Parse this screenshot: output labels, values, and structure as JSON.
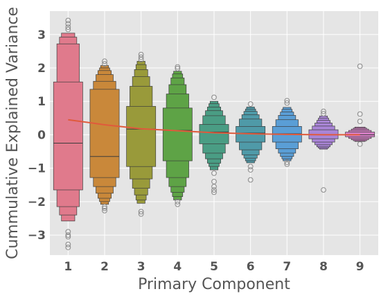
{
  "chart_data": {
    "type": "boxen",
    "title": "",
    "xlabel": "Primary Component",
    "ylabel": "Cummulative Explained Variance",
    "x_categories": [
      "1",
      "2",
      "3",
      "4",
      "5",
      "6",
      "7",
      "8",
      "9"
    ],
    "ylim": [
      -3.6,
      3.7
    ],
    "yticks": [
      -3,
      -2,
      -1,
      0,
      1,
      2,
      3
    ],
    "grid": true,
    "background_color": "#e5e5e5",
    "grid_color": "#ffffff",
    "trend_line": {
      "color": "#e05a3c",
      "values": [
        0.45,
        0.3,
        0.18,
        0.12,
        0.06,
        0.03,
        0.01,
        0.0,
        0.0
      ]
    },
    "series": [
      {
        "category": "1",
        "color": "#e07a8c",
        "median": -0.25,
        "levels": [
          [
            -1.65,
            1.58
          ],
          [
            -2.15,
            2.72
          ],
          [
            -2.4,
            2.92
          ],
          [
            -2.58,
            3.04
          ]
        ],
        "outliers": [
          3.42,
          3.32,
          3.22,
          3.15,
          -2.9,
          -3.0,
          -3.05,
          -3.28,
          -3.37
        ]
      },
      {
        "category": "2",
        "color": "#c9883a",
        "median": -0.65,
        "levels": [
          [
            -1.28,
            1.36
          ],
          [
            -1.55,
            1.6
          ],
          [
            -1.75,
            1.8
          ],
          [
            -1.9,
            1.92
          ],
          [
            -2.0,
            2.0
          ],
          [
            -2.08,
            2.07
          ]
        ],
        "outliers": [
          2.2,
          2.12,
          -2.15,
          -2.2,
          -2.27
        ]
      },
      {
        "category": "3",
        "color": "#999a3a",
        "median": 0.17,
        "levels": [
          [
            -0.95,
            0.85
          ],
          [
            -1.32,
            1.45
          ],
          [
            -1.6,
            1.74
          ],
          [
            -1.8,
            1.95
          ],
          [
            -1.95,
            2.1
          ],
          [
            -2.05,
            2.2
          ]
        ],
        "outliers": [
          2.4,
          2.32,
          2.25,
          -2.3,
          -2.37
        ]
      },
      {
        "category": "4",
        "color": "#5ea346",
        "median": 0.13,
        "levels": [
          [
            -0.78,
            0.8
          ],
          [
            -1.28,
            1.22
          ],
          [
            -1.55,
            1.5
          ],
          [
            -1.72,
            1.7
          ],
          [
            -1.85,
            1.82
          ],
          [
            -1.95,
            1.9
          ]
        ],
        "outliers": [
          2.03,
          1.98,
          -2.0,
          -2.08
        ]
      },
      {
        "category": "5",
        "color": "#4a9d84",
        "median": 0.08,
        "levels": [
          [
            -0.27,
            0.31
          ],
          [
            -0.55,
            0.57
          ],
          [
            -0.72,
            0.72
          ],
          [
            -0.85,
            0.83
          ],
          [
            -0.95,
            0.93
          ],
          [
            -1.05,
            1.0
          ]
        ],
        "outliers": [
          1.12,
          -1.15,
          -1.4,
          -1.55,
          -1.65,
          -1.72
        ]
      },
      {
        "category": "6",
        "color": "#4f9aa8",
        "median": 0.05,
        "levels": [
          [
            -0.22,
            0.25
          ],
          [
            -0.45,
            0.47
          ],
          [
            -0.6,
            0.6
          ],
          [
            -0.7,
            0.7
          ],
          [
            -0.78,
            0.77
          ],
          [
            -0.84,
            0.83
          ]
        ],
        "outliers": [
          0.92,
          -0.95,
          -1.05,
          -1.35
        ]
      },
      {
        "category": "7",
        "color": "#5a9ed6",
        "median": 0.03,
        "levels": [
          [
            -0.22,
            0.25
          ],
          [
            -0.42,
            0.45
          ],
          [
            -0.55,
            0.58
          ],
          [
            -0.65,
            0.68
          ],
          [
            -0.72,
            0.76
          ],
          [
            -0.78,
            0.82
          ]
        ],
        "outliers": [
          1.02,
          0.95,
          -0.82,
          -0.88
        ]
      },
      {
        "category": "8",
        "color": "#a985d6",
        "median": 0.0,
        "levels": [
          [
            -0.12,
            0.15
          ],
          [
            -0.22,
            0.26
          ],
          [
            -0.3,
            0.35
          ],
          [
            -0.36,
            0.43
          ],
          [
            -0.4,
            0.5
          ],
          [
            -0.43,
            0.56
          ]
        ],
        "outliers": [
          0.7,
          0.63,
          -1.65
        ]
      },
      {
        "category": "9",
        "color": "#d67fc6",
        "median": 0.0,
        "levels": [
          [
            -0.06,
            0.08
          ],
          [
            -0.11,
            0.13
          ],
          [
            -0.15,
            0.17
          ],
          [
            -0.18,
            0.2
          ],
          [
            -0.2,
            0.23
          ]
        ],
        "outliers": [
          2.05,
          0.62,
          0.4,
          -0.28
        ]
      }
    ]
  }
}
